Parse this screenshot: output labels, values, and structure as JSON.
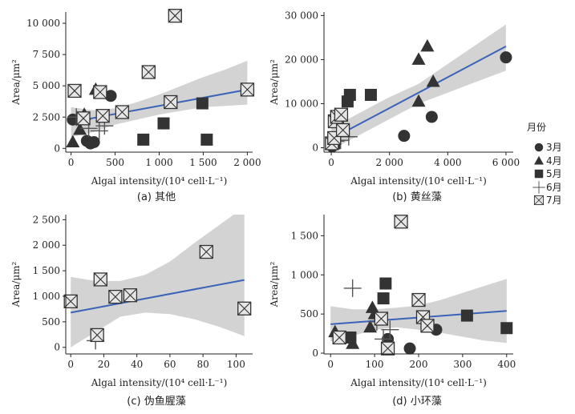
{
  "legend": {
    "title": "月份",
    "items": [
      {
        "label": "3月",
        "marker": "circle"
      },
      {
        "label": "4月",
        "marker": "triangle"
      },
      {
        "label": "5月",
        "marker": "square"
      },
      {
        "label": "6月",
        "marker": "plus"
      },
      {
        "label": "7月",
        "marker": "boxx"
      }
    ]
  },
  "colors": {
    "fit_line": "#3a63b8",
    "ci_band": "#d3d3d3",
    "marker_dark": "#333333",
    "marker_mid": "#555555",
    "boxx_fill": "#e6e6e6"
  },
  "chart_data": [
    {
      "type": "scatter",
      "caption": "(a) 其他",
      "xlabel": "Algal intensity/(10⁴ cell·L⁻¹)",
      "ylabel": "Area/μm²",
      "xlim": [
        -60,
        2060
      ],
      "ylim": [
        -300,
        10900
      ],
      "xticks": [
        0,
        500,
        1000,
        1500,
        2000
      ],
      "xtick_labels": [
        "0",
        "500",
        "1 000",
        "1 500",
        "2 000"
      ],
      "yticks": [
        0,
        2500,
        5000,
        7500,
        10000
      ],
      "ytick_labels": [
        "0",
        "2 500",
        "5 000",
        "7 500",
        "10 000"
      ],
      "fit": {
        "x": [
          0,
          2000
        ],
        "y": [
          2100,
          4700
        ]
      },
      "band": {
        "x": [
          0,
          250,
          500,
          750,
          1000,
          1250,
          1500,
          1750,
          2000
        ],
        "upper": [
          3300,
          3050,
          3200,
          3700,
          4300,
          5000,
          5700,
          6300,
          7000
        ],
        "lower": [
          900,
          1300,
          1900,
          2300,
          2700,
          3000,
          3300,
          3400,
          3500
        ]
      },
      "series": [
        {
          "month": "3月",
          "marker": "circle",
          "points": [
            [
              20,
              2300
            ],
            [
              180,
              600
            ],
            [
              220,
              400
            ],
            [
              260,
              500
            ],
            [
              450,
              4200
            ]
          ]
        },
        {
          "month": "4月",
          "marker": "triangle",
          "points": [
            [
              20,
              500
            ],
            [
              100,
              1500
            ],
            [
              150,
              2700
            ],
            [
              280,
              4700
            ],
            [
              330,
              4400
            ]
          ]
        },
        {
          "month": "5月",
          "marker": "square",
          "points": [
            [
              820,
              700
            ],
            [
              1050,
              2000
            ],
            [
              1490,
              3600
            ],
            [
              1540,
              700
            ]
          ]
        },
        {
          "month": "6月",
          "marker": "plus",
          "points": [
            [
              60,
              2500
            ],
            [
              200,
              1600
            ],
            [
              320,
              1400
            ],
            [
              380,
              1800
            ]
          ]
        },
        {
          "month": "7月",
          "marker": "boxx",
          "points": [
            [
              40,
              4600
            ],
            [
              140,
              2400
            ],
            [
              330,
              4500
            ],
            [
              360,
              2600
            ],
            [
              580,
              2900
            ],
            [
              880,
              6100
            ],
            [
              1130,
              3700
            ],
            [
              1180,
              10600
            ],
            [
              2000,
              4700
            ]
          ]
        }
      ]
    },
    {
      "type": "scatter",
      "caption": "(b) 黄丝藻",
      "xlabel": "Algal intensity/(10⁴ cell·L⁻¹)",
      "ylabel": "Area/μm²",
      "xlim": [
        -250,
        6250
      ],
      "ylim": [
        -1000,
        30800
      ],
      "xticks": [
        0,
        2000,
        4000,
        6000
      ],
      "xtick_labels": [
        "0",
        "2 000",
        "4 000",
        "6 000"
      ],
      "yticks": [
        0,
        10000,
        20000,
        30000
      ],
      "ytick_labels": [
        "0",
        "10 000",
        "20 000",
        "30 000"
      ],
      "fit": {
        "x": [
          0,
          6000
        ],
        "y": [
          2000,
          23000
        ]
      },
      "band": {
        "x": [
          0,
          1000,
          2000,
          3000,
          4000,
          5000,
          6000
        ],
        "upper": [
          4500,
          8000,
          11500,
          14500,
          19000,
          23500,
          28000
        ],
        "lower": [
          -500,
          3000,
          6500,
          10000,
          12500,
          15000,
          17500
        ]
      },
      "series": [
        {
          "month": "3月",
          "marker": "circle",
          "points": [
            [
              30,
              300
            ],
            [
              2500,
              2700
            ],
            [
              3450,
              7000
            ],
            [
              6000,
              20500
            ]
          ]
        },
        {
          "month": "4月",
          "marker": "triangle",
          "points": [
            [
              3000,
              10500
            ],
            [
              3000,
              20000
            ],
            [
              3300,
              23000
            ],
            [
              3500,
              15000
            ]
          ]
        },
        {
          "month": "5月",
          "marker": "square",
          "points": [
            [
              100,
              1000
            ],
            [
              560,
              10500
            ],
            [
              640,
              12000
            ],
            [
              1360,
              12000
            ]
          ]
        },
        {
          "month": "6月",
          "marker": "plus",
          "points": [
            [
              150,
              1500
            ],
            [
              200,
              3500
            ],
            [
              320,
              1700
            ],
            [
              600,
              2500
            ]
          ]
        },
        {
          "month": "7月",
          "marker": "boxx",
          "points": [
            [
              20,
              1000
            ],
            [
              100,
              2200
            ],
            [
              120,
              6000
            ],
            [
              200,
              7000
            ],
            [
              340,
              7500
            ],
            [
              400,
              4000
            ]
          ]
        }
      ]
    },
    {
      "type": "scatter",
      "caption": "(c) 伪鱼腥藻",
      "xlabel": "Algal intensity/(10⁴ cell·L⁻¹)",
      "ylabel": "Area/μm²",
      "xlim": [
        -3,
        110
      ],
      "ylim": [
        -130,
        2600
      ],
      "xticks": [
        0,
        20,
        40,
        60,
        80,
        100
      ],
      "xtick_labels": [
        "0",
        "20",
        "40",
        "60",
        "80",
        "100"
      ],
      "yticks": [
        0,
        500,
        1000,
        1500,
        2000,
        2500
      ],
      "ytick_labels": [
        "0",
        "500",
        "1 000",
        "1 500",
        "2 000",
        "2 500"
      ],
      "fit": {
        "x": [
          0,
          105
        ],
        "y": [
          680,
          1320
        ]
      },
      "band": {
        "x": [
          0,
          15,
          30,
          45,
          60,
          75,
          90,
          105
        ],
        "upper": [
          1380,
          1300,
          1300,
          1420,
          1680,
          2050,
          2400,
          2750
        ],
        "lower": [
          0,
          300,
          600,
          680,
          650,
          550,
          400,
          220
        ]
      },
      "series": [
        {
          "month": "6月",
          "marker": "plus",
          "points": [
            [
              15,
              130
            ]
          ]
        },
        {
          "month": "7月",
          "marker": "boxx",
          "points": [
            [
              0,
              900
            ],
            [
              16,
              240
            ],
            [
              18,
              1330
            ],
            [
              27,
              990
            ],
            [
              36,
              1020
            ],
            [
              82,
              1870
            ],
            [
              105,
              760
            ]
          ]
        }
      ]
    },
    {
      "type": "scatter",
      "caption": "(d) 小环藻",
      "xlabel": "Algal intensity/(10⁴ cell·L⁻¹)",
      "ylabel": "Area/μm²",
      "xlim": [
        -15,
        415
      ],
      "ylim": [
        -10,
        1770
      ],
      "xticks": [
        0,
        100,
        200,
        300,
        400
      ],
      "xtick_labels": [
        "0",
        "100",
        "200",
        "300",
        "400"
      ],
      "yticks": [
        0,
        500,
        1000,
        1500
      ],
      "ytick_labels": [
        "0",
        "500",
        "1 000",
        "1 500"
      ],
      "fit": {
        "x": [
          0,
          400
        ],
        "y": [
          370,
          540
        ]
      },
      "band": {
        "x": [
          0,
          50,
          100,
          150,
          200,
          250,
          300,
          350,
          400
        ],
        "upper": [
          600,
          560,
          560,
          580,
          610,
          680,
          770,
          860,
          950
        ],
        "lower": [
          150,
          220,
          300,
          330,
          300,
          260,
          210,
          160,
          130
        ]
      },
      "series": [
        {
          "month": "3月",
          "marker": "circle",
          "points": [
            [
              130,
              180
            ],
            [
              180,
              60
            ],
            [
              240,
              300
            ]
          ]
        },
        {
          "month": "4月",
          "marker": "triangle",
          "points": [
            [
              10,
              270
            ],
            [
              50,
              120
            ],
            [
              90,
              330
            ],
            [
              95,
              580
            ],
            [
              100,
              500
            ]
          ]
        },
        {
          "month": "5月",
          "marker": "square",
          "points": [
            [
              45,
              200
            ],
            [
              120,
              700
            ],
            [
              125,
              890
            ],
            [
              310,
              480
            ],
            [
              400,
              320
            ]
          ]
        },
        {
          "month": "6月",
          "marker": "plus",
          "points": [
            [
              50,
              830
            ],
            [
              105,
              400
            ],
            [
              120,
              180
            ],
            [
              135,
              300
            ]
          ]
        },
        {
          "month": "7月",
          "marker": "boxx",
          "points": [
            [
              20,
              200
            ],
            [
              115,
              440
            ],
            [
              130,
              60
            ],
            [
              160,
              1680
            ],
            [
              200,
              680
            ],
            [
              210,
              460
            ],
            [
              220,
              350
            ]
          ]
        }
      ]
    }
  ]
}
